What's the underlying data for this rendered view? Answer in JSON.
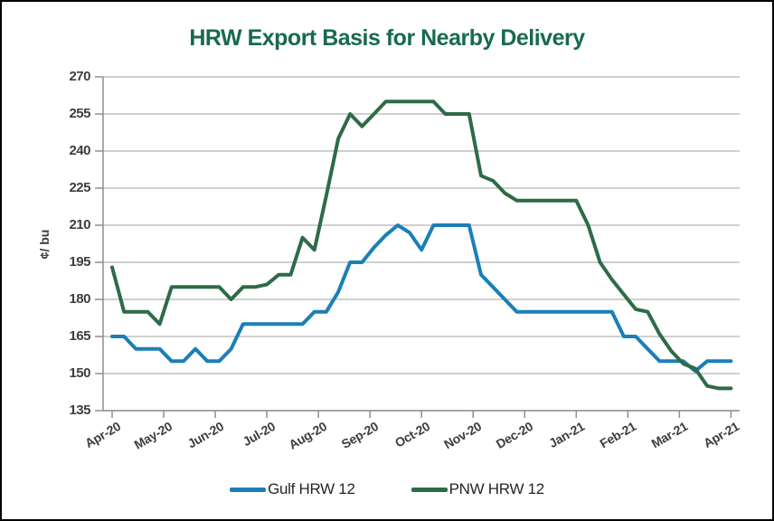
{
  "title": "HRW Export Basis for Nearby Delivery",
  "colors": {
    "title": "#176A4D",
    "gulf_series": "#1A7FB8",
    "pnw_series": "#2E6B47"
  },
  "chart_data": {
    "type": "line",
    "title": "HRW Export Basis for Nearby Delivery",
    "ylabel": "¢/ bu",
    "ylim": [
      135,
      270
    ],
    "ytick_step": 15,
    "yticks": [
      135,
      150,
      165,
      180,
      195,
      210,
      225,
      240,
      255,
      270
    ],
    "x_tick_labels": [
      "Apr-20",
      "May-20",
      "Jun-20",
      "Jul-20",
      "Aug-20",
      "Sep-20",
      "Oct-20",
      "Nov-20",
      "Dec-20",
      "Jan-21",
      "Feb-21",
      "Mar-21",
      "Apr-21"
    ],
    "frequency": "weekly",
    "grid": "horizontal",
    "legend_position": "bottom",
    "series": [
      {
        "name": "Gulf HRW 12",
        "color": "#1A7FB8",
        "values": [
          165,
          165,
          160,
          160,
          160,
          155,
          155,
          160,
          155,
          155,
          160,
          170,
          170,
          170,
          170,
          170,
          170,
          175,
          175,
          183,
          195,
          195,
          201,
          206,
          210,
          207,
          200,
          210,
          210,
          210,
          210,
          190,
          185,
          180,
          175,
          175,
          175,
          175,
          175,
          175,
          175,
          175,
          175,
          165,
          165,
          160,
          155,
          155,
          155,
          151,
          155,
          155,
          155
        ]
      },
      {
        "name": "PNW HRW 12",
        "color": "#2E6B47",
        "values": [
          193,
          175,
          175,
          175,
          170,
          185,
          185,
          185,
          185,
          185,
          180,
          185,
          185,
          186,
          190,
          190,
          205,
          200,
          222,
          245,
          255,
          250,
          255,
          260,
          260,
          260,
          260,
          260,
          255,
          255,
          255,
          230,
          228,
          223,
          220,
          220,
          220,
          220,
          220,
          220,
          210,
          195,
          188,
          182,
          176,
          175,
          166,
          159,
          154,
          152,
          145,
          144,
          144
        ]
      }
    ]
  }
}
